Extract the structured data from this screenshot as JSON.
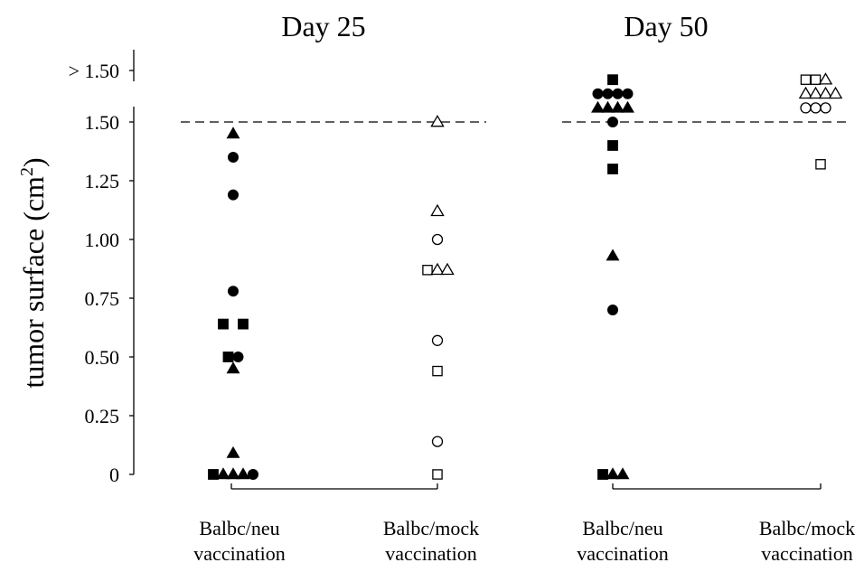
{
  "chart_data": {
    "type": "scatter",
    "ylabel": "tumor surface  (cm",
    "ylabel_sup": "2",
    "ylabel_close": ")",
    "y_ticks": [
      "0",
      "0.25",
      "0.50",
      "0.75",
      "1.00",
      "1.25",
      "1.50",
      "> 1.50"
    ],
    "y_tick_values": [
      0,
      0.25,
      0.5,
      0.75,
      1.0,
      1.25,
      1.5,
      1.75
    ],
    "ylim": [
      0,
      1.8
    ],
    "threshold_line": 1.5,
    "panels": [
      {
        "title": "Day 25",
        "groups": [
          {
            "label_line1": "Balbc/neu",
            "label_line2": "vaccination",
            "filled": true,
            "points": [
              {
                "shape": "triangle",
                "y": 1.45,
                "x": 0
              },
              {
                "shape": "circle",
                "y": 1.35,
                "x": 0
              },
              {
                "shape": "circle",
                "y": 1.19,
                "x": 0
              },
              {
                "shape": "circle",
                "y": 0.78,
                "x": 0
              },
              {
                "shape": "square",
                "y": 0.64,
                "x": -1
              },
              {
                "shape": "square",
                "y": 0.64,
                "x": 1
              },
              {
                "shape": "square",
                "y": 0.5,
                "x": -0.5
              },
              {
                "shape": "circle",
                "y": 0.5,
                "x": 0.5
              },
              {
                "shape": "triangle",
                "y": 0.45,
                "x": 0
              },
              {
                "shape": "triangle",
                "y": 0.09,
                "x": 0
              },
              {
                "shape": "square",
                "y": 0.0,
                "x": -2
              },
              {
                "shape": "triangle",
                "y": 0.0,
                "x": -1
              },
              {
                "shape": "triangle",
                "y": 0.0,
                "x": 0
              },
              {
                "shape": "triangle",
                "y": 0.0,
                "x": 1
              },
              {
                "shape": "circle",
                "y": 0.0,
                "x": 2
              }
            ]
          },
          {
            "label_line1": "Balbc/mock",
            "label_line2": "vaccination",
            "filled": false,
            "points": [
              {
                "shape": "triangle",
                "y": 1.5,
                "x": 0
              },
              {
                "shape": "triangle",
                "y": 1.12,
                "x": 0
              },
              {
                "shape": "circle",
                "y": 1.0,
                "x": 0
              },
              {
                "shape": "square",
                "y": 0.87,
                "x": -1
              },
              {
                "shape": "triangle",
                "y": 0.87,
                "x": 0
              },
              {
                "shape": "triangle",
                "y": 0.87,
                "x": 1
              },
              {
                "shape": "circle",
                "y": 0.57,
                "x": 0
              },
              {
                "shape": "square",
                "y": 0.44,
                "x": 0
              },
              {
                "shape": "circle",
                "y": 0.14,
                "x": 0
              },
              {
                "shape": "square",
                "y": 0.0,
                "x": 0
              }
            ]
          }
        ]
      },
      {
        "title": "Day 50",
        "groups": [
          {
            "label_line1": "Balbc/neu",
            "label_line2": "vaccination",
            "filled": true,
            "points": [
              {
                "shape": "square",
                "y": 1.68,
                "x": 0
              },
              {
                "shape": "circle",
                "y": 1.62,
                "x": -1.5
              },
              {
                "shape": "circle",
                "y": 1.62,
                "x": -0.5
              },
              {
                "shape": "circle",
                "y": 1.62,
                "x": 0.5
              },
              {
                "shape": "circle",
                "y": 1.62,
                "x": 1.5
              },
              {
                "shape": "triangle",
                "y": 1.56,
                "x": -1.5
              },
              {
                "shape": "triangle",
                "y": 1.56,
                "x": -0.5
              },
              {
                "shape": "triangle",
                "y": 1.56,
                "x": 0.5
              },
              {
                "shape": "triangle",
                "y": 1.56,
                "x": 1.5
              },
              {
                "shape": "circle",
                "y": 1.5,
                "x": 0
              },
              {
                "shape": "square",
                "y": 1.4,
                "x": 0
              },
              {
                "shape": "square",
                "y": 1.3,
                "x": 0
              },
              {
                "shape": "triangle",
                "y": 0.93,
                "x": 0
              },
              {
                "shape": "circle",
                "y": 0.7,
                "x": 0
              },
              {
                "shape": "square",
                "y": 0.0,
                "x": -1
              },
              {
                "shape": "triangle",
                "y": 0.0,
                "x": 0
              },
              {
                "shape": "triangle",
                "y": 0.0,
                "x": 1
              }
            ]
          },
          {
            "label_line1": "Balbc/mock",
            "label_line2": "vaccination",
            "filled": false,
            "points": [
              {
                "shape": "square",
                "y": 1.68,
                "x": -1.5
              },
              {
                "shape": "square",
                "y": 1.68,
                "x": -0.5
              },
              {
                "shape": "triangle",
                "y": 1.68,
                "x": 0.5
              },
              {
                "shape": "triangle",
                "y": 1.62,
                "x": -1.5
              },
              {
                "shape": "triangle",
                "y": 1.62,
                "x": -0.5
              },
              {
                "shape": "triangle",
                "y": 1.62,
                "x": 0.5
              },
              {
                "shape": "triangle",
                "y": 1.62,
                "x": 1.5
              },
              {
                "shape": "circle",
                "y": 1.56,
                "x": -1.5
              },
              {
                "shape": "circle",
                "y": 1.56,
                "x": -0.5
              },
              {
                "shape": "circle",
                "y": 1.56,
                "x": 0.5
              },
              {
                "shape": "square",
                "y": 1.32,
                "x": 0
              }
            ]
          }
        ]
      }
    ]
  }
}
